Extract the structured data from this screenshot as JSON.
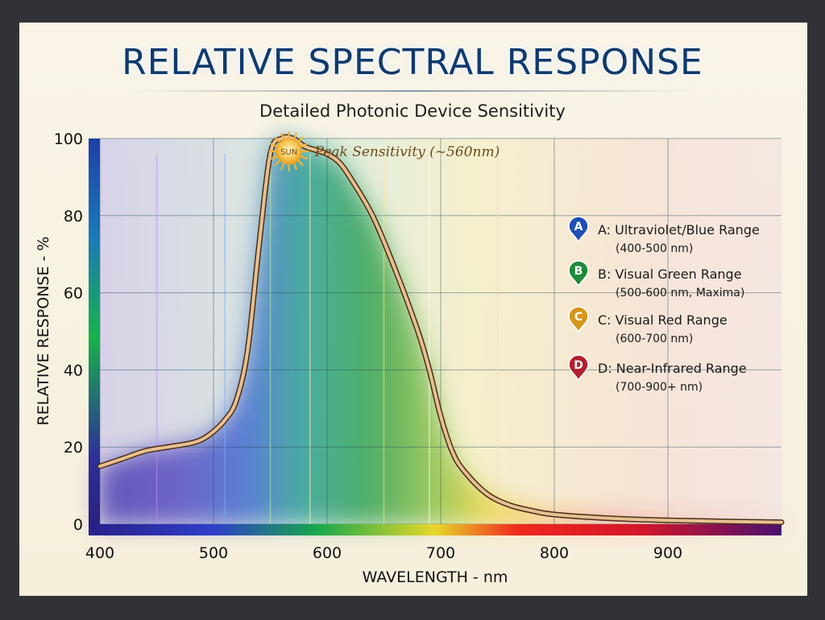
{
  "chart_data": {
    "type": "line",
    "title": "RELATIVE SPECTRAL RESPONSE",
    "subtitle": "Detailed Photonic Device Sensitivity",
    "xlabel": "WAVELENGTH - nm",
    "ylabel": "RELATIVE RESPONSE - %",
    "xlim": [
      400,
      1000
    ],
    "ylim": [
      0,
      100
    ],
    "xticks": [
      400,
      500,
      600,
      700,
      800,
      900
    ],
    "yticks": [
      0,
      20,
      40,
      60,
      80,
      100
    ],
    "grid": true,
    "legend_position": "right",
    "series": [
      {
        "x": [
          400,
          420,
          440,
          460,
          480,
          490,
          500,
          510,
          520,
          530,
          540,
          550,
          560,
          570,
          580,
          590,
          600,
          610,
          620,
          640,
          660,
          680,
          690,
          700,
          710,
          720,
          740,
          760,
          780,
          800,
          850,
          900,
          950,
          1000
        ],
        "y": [
          15,
          17,
          19,
          20,
          21,
          22,
          24,
          27,
          32,
          45,
          72,
          96,
          100,
          100,
          98,
          97,
          96,
          94,
          90,
          80,
          66,
          50,
          40,
          28,
          19,
          14,
          8,
          5,
          3.5,
          2.5,
          1.5,
          1,
          0.7,
          0.5
        ]
      }
    ],
    "annotations": [
      {
        "text": "Peak Sensitivity (~560nm)",
        "x": 565,
        "y": 100,
        "marker": "SUN"
      }
    ],
    "legend": [
      {
        "letter": "A",
        "label": "A: Ultraviolet/Blue Range",
        "sub": "(400-500 nm)",
        "color": "#1f4fb5"
      },
      {
        "letter": "B",
        "label": "B: Visual Green Range",
        "sub": "(500-600 nm, Maxima)",
        "color": "#1e8a3a"
      },
      {
        "letter": "C",
        "label": "C: Visual Red Range",
        "sub": "(600-700 nm)",
        "color": "#d4961a"
      },
      {
        "letter": "D",
        "label": "D: Near-Infrared Range",
        "sub": "(700-900+ nm)",
        "color": "#b3202e"
      }
    ],
    "colors": {
      "curve": "#c79a6a",
      "curve_edge": "#5a3a22",
      "grid": "#1e4a5a",
      "title": "#0f3a6e"
    }
  }
}
